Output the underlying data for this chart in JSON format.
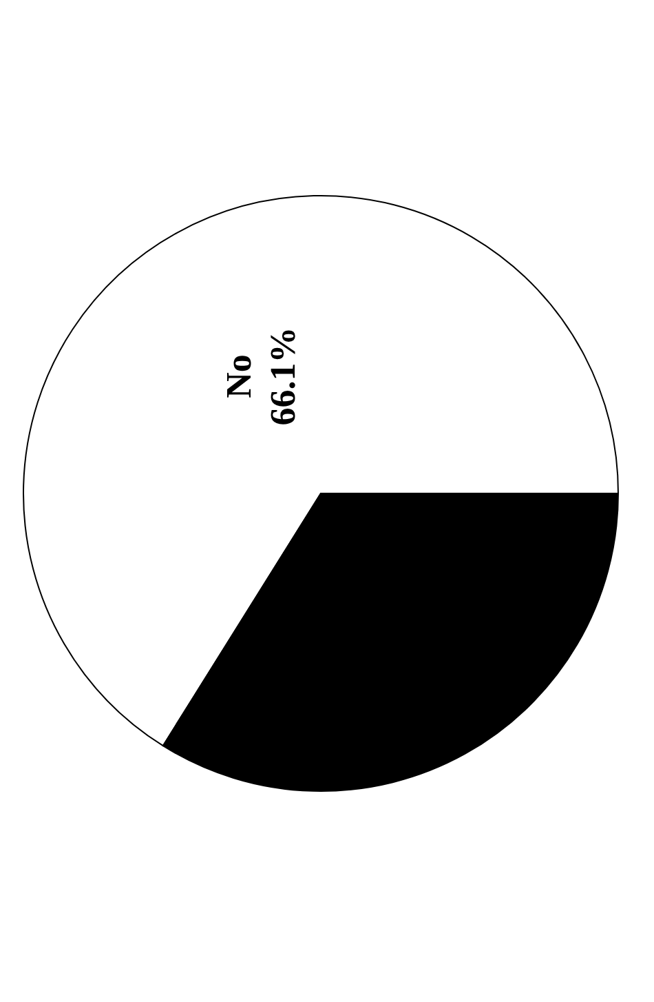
{
  "chart_data": {
    "type": "pie",
    "categories": [
      "No",
      null
    ],
    "values": [
      66.1,
      33.9
    ],
    "colors": [
      "#ffffff",
      "#000000"
    ],
    "value_labels": [
      "66.1%",
      null
    ]
  }
}
